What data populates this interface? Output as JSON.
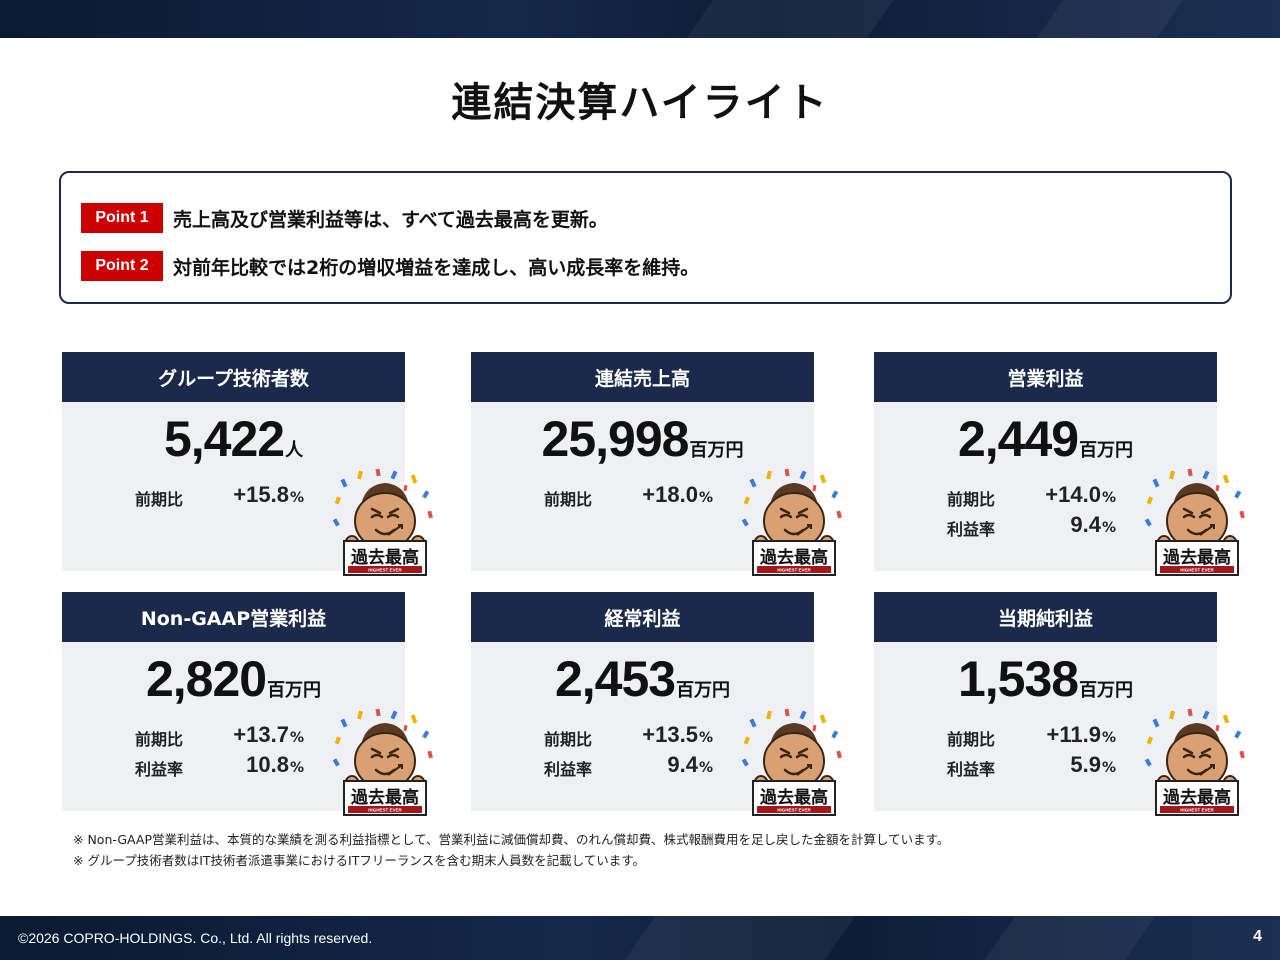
{
  "title": "連結決算ハイライト",
  "points": [
    {
      "badge": "Point 1",
      "text": "売上高及び営業利益等は、すべて過去最高を更新。"
    },
    {
      "badge": "Point 2",
      "text": "対前年比較では2桁の増収増益を達成し、高い成長率を維持。"
    }
  ],
  "mascot_badge_text": "過去最高",
  "mascot_badge_sub": "HIGHEST EVER",
  "cards": [
    {
      "title": "グループ技術者数",
      "value": "5,422",
      "unit": "人",
      "yoy_label": "前期比",
      "yoy_value": "+15.8",
      "yoy_unit": "%"
    },
    {
      "title": "連結売上高",
      "value": "25,998",
      "unit": "百万円",
      "yoy_label": "前期比",
      "yoy_value": "+18.0",
      "yoy_unit": "%"
    },
    {
      "title": "営業利益",
      "value": "2,449",
      "unit": "百万円",
      "yoy_label": "前期比",
      "yoy_value": "+14.0",
      "yoy_unit": "%",
      "margin_label": "利益率",
      "margin_value": "9.4",
      "margin_unit": "%"
    },
    {
      "title": "Non-GAAP営業利益",
      "value": "2,820",
      "unit": "百万円",
      "yoy_label": "前期比",
      "yoy_value": "+13.7",
      "yoy_unit": "%",
      "margin_label": "利益率",
      "margin_value": "10.8",
      "margin_unit": "%"
    },
    {
      "title": "経常利益",
      "value": "2,453",
      "unit": "百万円",
      "yoy_label": "前期比",
      "yoy_value": "+13.5",
      "yoy_unit": "%",
      "margin_label": "利益率",
      "margin_value": "9.4",
      "margin_unit": "%"
    },
    {
      "title": "当期純利益",
      "value": "1,538",
      "unit": "百万円",
      "yoy_label": "前期比",
      "yoy_value": "+11.9",
      "yoy_unit": "%",
      "margin_label": "利益率",
      "margin_value": "5.9",
      "margin_unit": "%"
    }
  ],
  "footnotes": [
    "※ Non-GAAP営業利益は、本質的な業績を測る利益指標として、営業利益に減価償却費、のれん償却費、株式報酬費用を足し戻した金額を計算しています。",
    "※ グループ技術者数はIT技術者派遣事業におけるITフリーランスを含む期末人員数を記載しています。"
  ],
  "footer": {
    "copyright": "©2026 COPRO-HOLDINGS. Co., Ltd. All rights reserved.",
    "page_number": "4"
  },
  "colors": {
    "navy": "#1b2a4a",
    "accent_red": "#cc0000",
    "card_bg": "#eef0f3"
  }
}
